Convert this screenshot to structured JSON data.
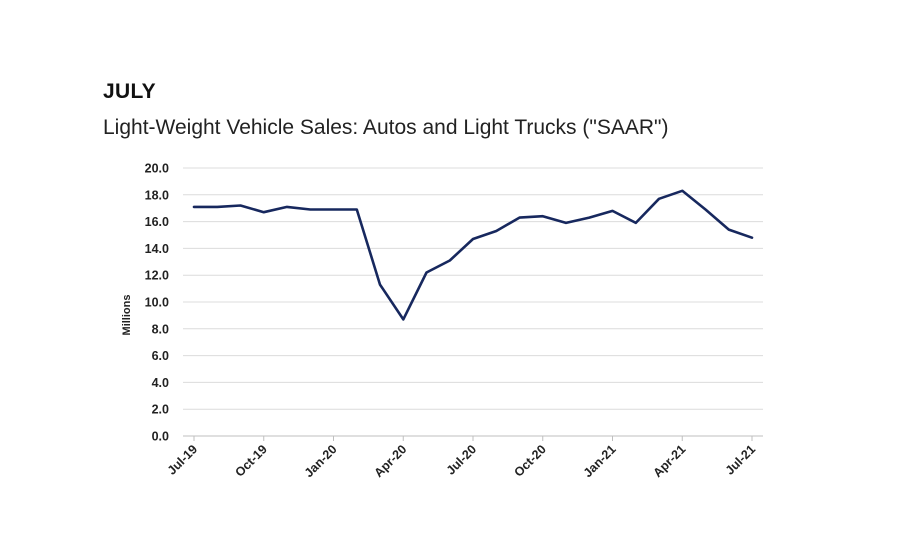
{
  "header": {
    "heading": "JULY",
    "subtitle": "Light-Weight Vehicle Sales: Autos and Light Trucks (\"SAAR\")"
  },
  "chart_data": {
    "type": "line",
    "title": "Light-Weight Vehicle Sales: Autos and Light Trucks (\"SAAR\")",
    "xlabel": "",
    "ylabel": "Millions",
    "ylim": [
      0,
      20
    ],
    "yticks": [
      "0.0",
      "2.0",
      "4.0",
      "6.0",
      "8.0",
      "10.0",
      "12.0",
      "14.0",
      "16.0",
      "18.0",
      "20.0"
    ],
    "x": [
      "Jul-19",
      "Aug-19",
      "Sep-19",
      "Oct-19",
      "Nov-19",
      "Dec-19",
      "Jan-20",
      "Feb-20",
      "Mar-20",
      "Apr-20",
      "May-20",
      "Jun-20",
      "Jul-20",
      "Aug-20",
      "Sep-20",
      "Oct-20",
      "Nov-20",
      "Dec-20",
      "Jan-21",
      "Feb-21",
      "Mar-21",
      "Apr-21",
      "May-21",
      "Jun-21",
      "Jul-21"
    ],
    "xtick_labels": [
      "Jul-19",
      "Oct-19",
      "Jan-20",
      "Apr-20",
      "Jul-20",
      "Oct-20",
      "Jan-21",
      "Apr-21",
      "Jul-21"
    ],
    "series": [
      {
        "values": [
          17.1,
          17.1,
          17.2,
          16.7,
          17.1,
          16.9,
          16.9,
          16.9,
          11.3,
          8.7,
          12.2,
          13.1,
          14.7,
          15.3,
          16.3,
          16.4,
          15.9,
          16.3,
          16.8,
          15.9,
          17.7,
          18.3,
          16.9,
          15.4,
          14.8
        ],
        "color": "#17285e"
      }
    ],
    "grid": true,
    "gridline_color": "#dcdcdc"
  }
}
